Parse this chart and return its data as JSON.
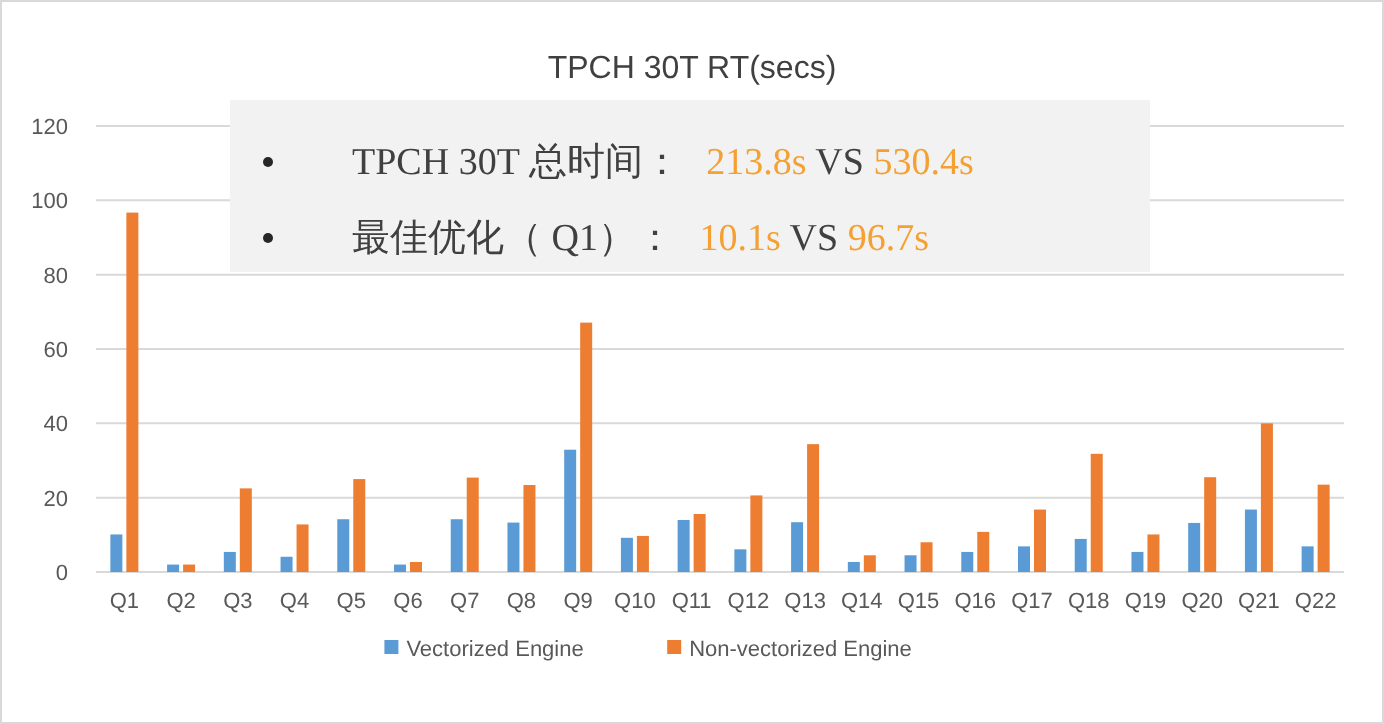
{
  "chart_data": {
    "type": "bar",
    "title": "TPCH 30T RT(secs)",
    "categories": [
      "Q1",
      "Q2",
      "Q3",
      "Q4",
      "Q5",
      "Q6",
      "Q7",
      "Q8",
      "Q9",
      "Q10",
      "Q11",
      "Q12",
      "Q13",
      "Q14",
      "Q15",
      "Q16",
      "Q17",
      "Q18",
      "Q19",
      "Q20",
      "Q21",
      "Q22"
    ],
    "series": [
      {
        "name": "Vectorized Engine",
        "color": "#5b9bd5",
        "values": [
          10.1,
          2,
          5.4,
          4.1,
          14.2,
          2,
          14.2,
          13.3,
          32.9,
          9.2,
          14,
          6.1,
          13.4,
          2.7,
          4.5,
          5.4,
          6.9,
          8.9,
          5.4,
          13.2,
          16.8,
          6.9
        ]
      },
      {
        "name": "Non-vectorized Engine",
        "color": "#ed7d31",
        "values": [
          96.7,
          2,
          22.5,
          12.8,
          25,
          2.7,
          25.4,
          23.4,
          67.1,
          9.7,
          15.6,
          20.6,
          34.4,
          4.5,
          8,
          10.8,
          16.8,
          31.8,
          10.1,
          25.5,
          40,
          23.5
        ]
      }
    ],
    "ylim": [
      0,
      120
    ],
    "yticks": [
      0,
      20,
      40,
      60,
      80,
      100,
      120
    ],
    "grid": "y",
    "legend": "bottom",
    "annotations": [
      "TPCH 30T 总时间：",
      "213.8s",
      "VS",
      "530.4s",
      "最佳优化（ Q1）：",
      "10.1s",
      "VS",
      "96.7s"
    ]
  }
}
